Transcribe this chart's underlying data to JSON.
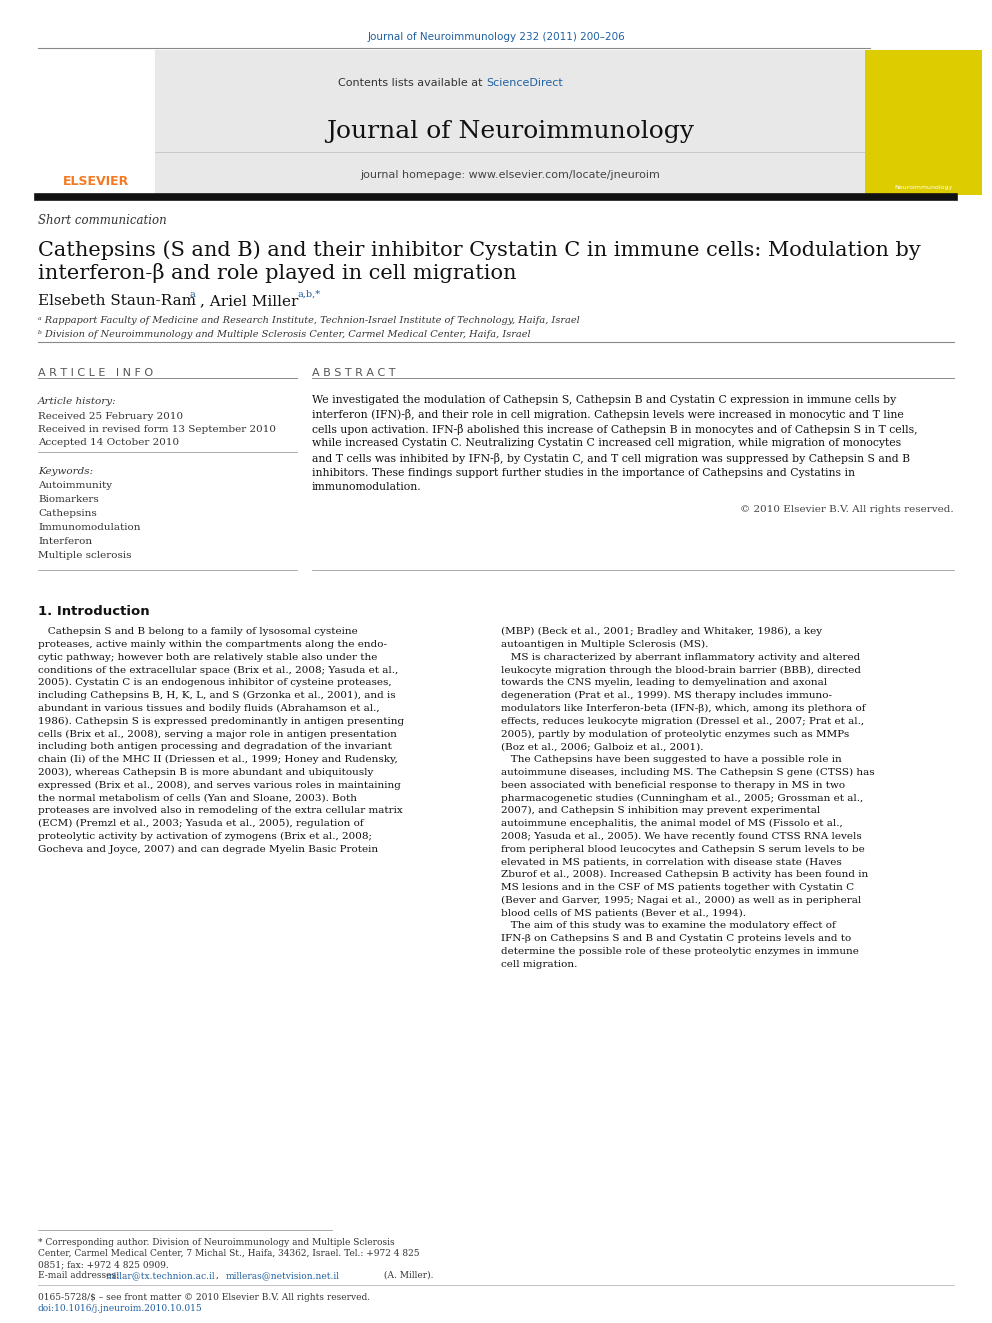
{
  "page_width": 9.92,
  "page_height": 13.23,
  "dpi": 100,
  "background_color": "#ffffff",
  "header_citation": "Journal of Neuroimmunology 232 (2011) 200–206",
  "header_citation_color": "#2060a0",
  "journal_header_bg": "#e8e8e8",
  "contents_text": "Contents lists available at ",
  "sciencedirect_text": "ScienceDirect",
  "sciencedirect_color": "#2060a0",
  "journal_title": "Journal of Neuroimmunology",
  "journal_homepage": "journal homepage: www.elsevier.com/locate/jneuroim",
  "elsevier_orange": "#f47920",
  "article_type": "Short communication",
  "paper_title_line1": "Cathepsins (S and B) and their inhibitor Cystatin C in immune cells: Modulation by",
  "paper_title_line2": "interferon-β and role played in cell migration",
  "author_line": "Elsebeth Staun-Ram",
  "author_sup1": " a",
  "author2": ", Ariel Miller",
  "author_sup2": " a,b,*",
  "affil_a": "ᵃ Rappaport Faculty of Medicine and Research Institute, Technion-Israel Institute of Technology, Haifa, Israel",
  "affil_b": "ᵇ Division of Neuroimmunology and Multiple Sclerosis Center, Carmel Medical Center, Haifa, Israel",
  "section_article_info": "A R T I C L E   I N F O",
  "section_abstract": "A B S T R A C T",
  "article_history_label": "Article history:",
  "received": "Received 25 February 2010",
  "received_revised": "Received in revised form 13 September 2010",
  "accepted": "Accepted 14 October 2010",
  "keywords_label": "Keywords:",
  "keywords": [
    "Autoimmunity",
    "Biomarkers",
    "Cathepsins",
    "Immunomodulation",
    "Interferon",
    "Multiple sclerosis"
  ],
  "copyright": "© 2010 Elsevier B.V. All rights reserved.",
  "intro_heading": "1. Introduction",
  "footnote_star": "* Corresponding author. Division of Neuroimmunology and Multiple Sclerosis",
  "footnote_line2": "Center, Carmel Medical Center, 7 Michal St., Haifa, 34362, Israel. Tel.: +972 4 825",
  "footnote_line3": "0851; fax: +972 4 825 0909.",
  "footnote_email_label": "E-mail addresses: ",
  "footnote_email1": "millar@tx.technion.ac.il",
  "footnote_email_sep": ", ",
  "footnote_email2": "milleras@netvision.net.il",
  "footnote_email_end": " (A. Miller).",
  "footer1": "0165-5728/$ – see front matter © 2010 Elsevier B.V. All rights reserved.",
  "footer2": "doi:10.1016/j.jneuroim.2010.10.015",
  "link_color": "#2060a0",
  "text_color": "#000000",
  "gray_text": "#444444",
  "col_split": 0.305,
  "abstract_lines": [
    "We investigated the modulation of Cathepsin S, Cathepsin B and Cystatin C expression in immune cells by",
    "interferon (IFN)-β, and their role in cell migration. Cathepsin levels were increased in monocytic and T line",
    "cells upon activation. IFN-β abolished this increase of Cathepsin B in monocytes and of Cathepsin S in T cells,",
    "while increased Cystatin C. Neutralizing Cystatin C increased cell migration, while migration of monocytes",
    "and T cells was inhibited by IFN-β, by Cystatin C, and T cell migration was suppressed by Cathepsin S and B",
    "inhibitors. These findings support further studies in the importance of Cathepsins and Cystatins in",
    "immunomodulation."
  ],
  "col1_lines": [
    "   Cathepsin S and B belong to a family of lysosomal cysteine",
    "proteases, active mainly within the compartments along the endo-",
    "cytic pathway; however both are relatively stable also under the",
    "conditions of the extracellular space (Brix et al., 2008; Yasuda et al.,",
    "2005). Cystatin C is an endogenous inhibitor of cysteine proteases,",
    "including Cathepsins B, H, K, L, and S (Grzonka et al., 2001), and is",
    "abundant in various tissues and bodily fluids (Abrahamson et al.,",
    "1986). Cathepsin S is expressed predominantly in antigen presenting",
    "cells (Brix et al., 2008), serving a major role in antigen presentation",
    "including both antigen processing and degradation of the invariant",
    "chain (Ii) of the MHC II (Driessen et al., 1999; Honey and Rudensky,",
    "2003), whereas Cathepsin B is more abundant and ubiquitously",
    "expressed (Brix et al., 2008), and serves various roles in maintaining",
    "the normal metabolism of cells (Yan and Sloane, 2003). Both",
    "proteases are involved also in remodeling of the extra cellular matrix",
    "(ECM) (Premzl et al., 2003; Yasuda et al., 2005), regulation of",
    "proteolytic activity by activation of zymogens (Brix et al., 2008;",
    "Gocheva and Joyce, 2007) and can degrade Myelin Basic Protein"
  ],
  "col2_lines": [
    "(MBP) (Beck et al., 2001; Bradley and Whitaker, 1986), a key",
    "autoantigen in Multiple Sclerosis (MS).",
    "   MS is characterized by aberrant inflammatory activity and altered",
    "leukocyte migration through the blood-brain barrier (BBB), directed",
    "towards the CNS myelin, leading to demyelination and axonal",
    "degeneration (Prat et al., 1999). MS therapy includes immuno-",
    "modulators like Interferon-beta (IFN-β), which, among its plethora of",
    "effects, reduces leukocyte migration (Dressel et al., 2007; Prat et al.,",
    "2005), partly by modulation of proteolytic enzymes such as MMPs",
    "(Boz et al., 2006; Galboiz et al., 2001).",
    "   The Cathepsins have been suggested to have a possible role in",
    "autoimmune diseases, including MS. The Cathepsin S gene (CTSS) has",
    "been associated with beneficial response to therapy in MS in two",
    "pharmacogenetic studies (Cunningham et al., 2005; Grossman et al.,",
    "2007), and Cathepsin S inhibition may prevent experimental",
    "autoimmune encephalitis, the animal model of MS (Fissolo et al.,",
    "2008; Yasuda et al., 2005). We have recently found CTSS RNA levels",
    "from peripheral blood leucocytes and Cathepsin S serum levels to be",
    "elevated in MS patients, in correlation with disease state (Haves",
    "Zburof et al., 2008). Increased Cathepsin B activity has been found in",
    "MS lesions and in the CSF of MS patients together with Cystatin C",
    "(Bever and Garver, 1995; Nagai et al., 2000) as well as in peripheral",
    "blood cells of MS patients (Bever et al., 1994).",
    "   The aim of this study was to examine the modulatory effect of",
    "IFN-β on Cathepsins S and B and Cystatin C proteins levels and to",
    "determine the possible role of these proteolytic enzymes in immune",
    "cell migration."
  ]
}
